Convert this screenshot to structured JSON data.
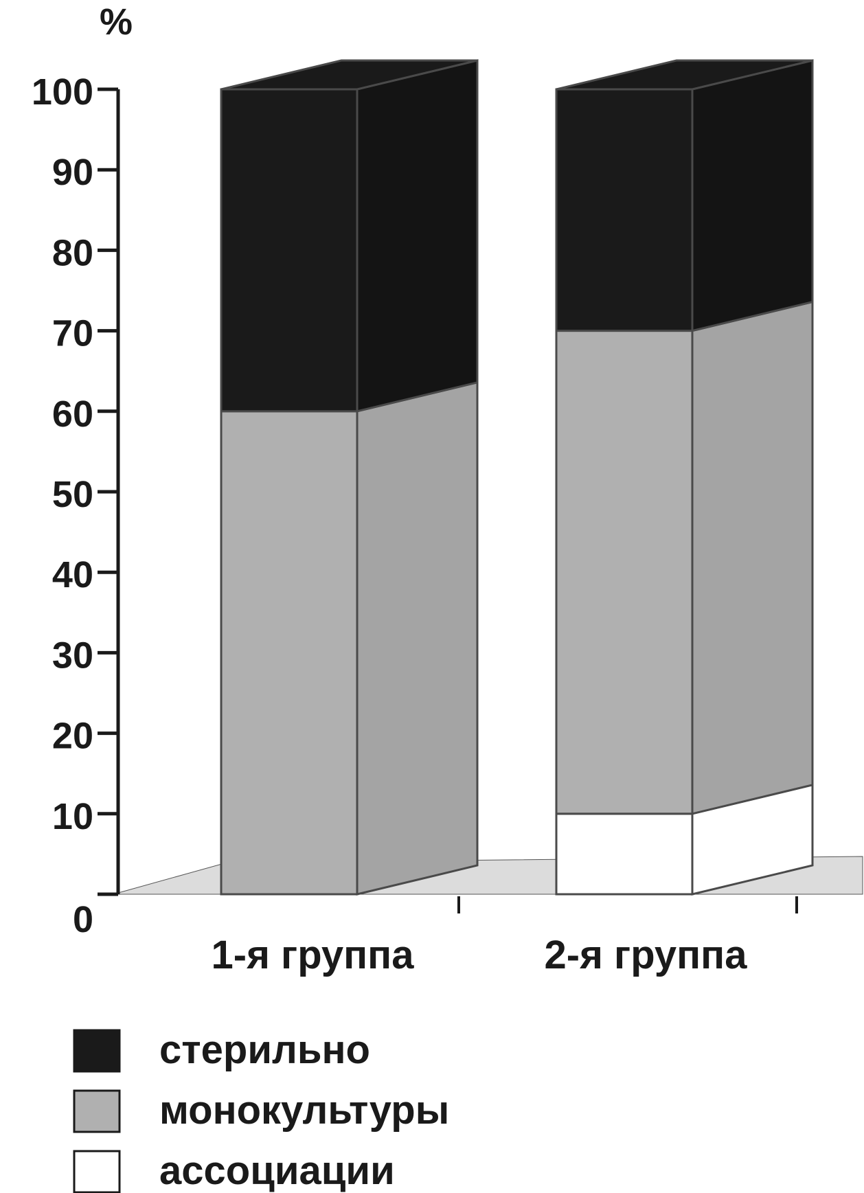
{
  "chart_data": {
    "type": "bar",
    "stacked": true,
    "three_d": true,
    "ylabel": "%",
    "ylim": [
      0,
      100
    ],
    "yticks": [
      0,
      10,
      20,
      30,
      40,
      50,
      60,
      70,
      80,
      90,
      100
    ],
    "categories": [
      "1-я группа",
      "2-я группа"
    ],
    "series": [
      {
        "name": "ассоциации",
        "color": "#ffffff",
        "values": [
          0,
          10
        ]
      },
      {
        "name": "монокультуры",
        "color": "#b0b0b0",
        "values": [
          60,
          60
        ]
      },
      {
        "name": "стерильно",
        "color": "#1a1a1a",
        "values": [
          40,
          30
        ]
      }
    ],
    "legend_position": "bottom-left",
    "grid": false
  }
}
